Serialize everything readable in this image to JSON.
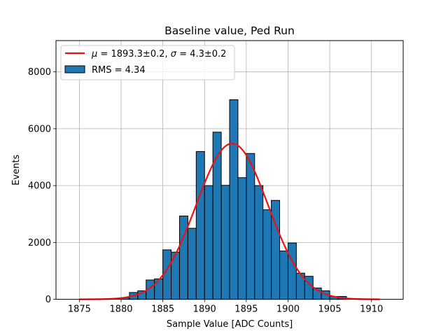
{
  "chart_data": {
    "type": "bar",
    "title": "Baseline value, Ped Run",
    "xlabel": "Sample Value [ADC Counts]",
    "ylabel": "Events",
    "xlim": [
      1872.2,
      1913.8
    ],
    "ylim": [
      0,
      9100
    ],
    "grid": true,
    "legend_position": "top-left",
    "xticks": [
      1875,
      1880,
      1885,
      1890,
      1895,
      1900,
      1905,
      1910
    ],
    "yticks": [
      0,
      2000,
      4000,
      6000,
      8000
    ],
    "bin_width": 1,
    "histogram": {
      "name": "RMS = 4.34",
      "color": "#1f77b4",
      "edgecolor": "#000000",
      "bin_left_edges": [
        1875,
        1876,
        1877,
        1878,
        1879,
        1880,
        1881,
        1882,
        1883,
        1884,
        1885,
        1886,
        1887,
        1888,
        1889,
        1890,
        1891,
        1892,
        1893,
        1894,
        1895,
        1896,
        1897,
        1898,
        1899,
        1900,
        1901,
        1902,
        1903,
        1904,
        1905,
        1906,
        1907,
        1908,
        1909,
        1910
      ],
      "counts": [
        0,
        0,
        0,
        0,
        0,
        60,
        240,
        300,
        680,
        720,
        1740,
        1660,
        2930,
        2500,
        5200,
        4000,
        5880,
        4010,
        7020,
        4280,
        5130,
        4000,
        3150,
        3480,
        1700,
        1980,
        920,
        810,
        400,
        300,
        100,
        100,
        0,
        0,
        0,
        0
      ]
    },
    "fit": {
      "name": "$\\mu = 1893.3 \\pm 0.2$, $\\sigma = 4.3 \\pm 0.2$",
      "legend_label_italic_mu": "μ",
      "legend_label_mid": " = 1893.3±0.2, ",
      "legend_label_italic_sigma": "σ",
      "legend_label_end": " = 4.3±0.2",
      "mu": 1893.3,
      "sigma": 4.3,
      "amplitude": 5480,
      "x_range": [
        1875,
        1911
      ],
      "color": "#ee1111"
    }
  }
}
